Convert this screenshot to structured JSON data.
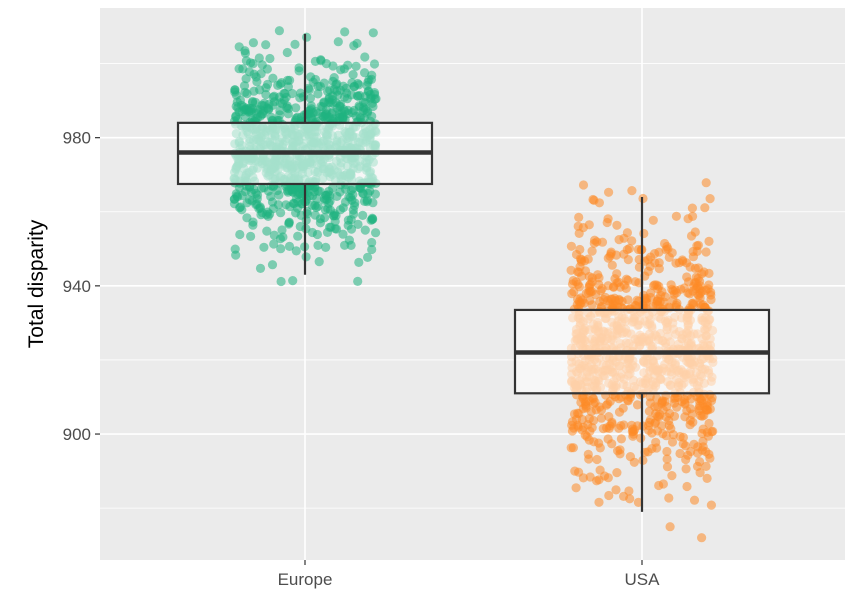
{
  "chart_data": {
    "type": "boxplot",
    "xlabel": "",
    "ylabel": "Total disparity",
    "categories": [
      "Europe",
      "USA"
    ],
    "ylim": [
      866,
      1015
    ],
    "y_ticks": [
      900,
      940,
      980
    ],
    "grid": true,
    "background": "#ebebeb",
    "boxes": [
      {
        "category": "Europe",
        "whisker_low": 943,
        "q1": 967.5,
        "median": 976,
        "q3": 984,
        "whisker_high": 1008,
        "outliers": [],
        "points_color": "#1fb37f",
        "points_range": [
          936,
          1012
        ]
      },
      {
        "category": "USA",
        "whisker_low": 879,
        "q1": 911,
        "median": 922,
        "q3": 933.5,
        "whisker_high": 964,
        "outliers": [],
        "points_color": "#fd8b27",
        "points_range": [
          870,
          973
        ]
      }
    ]
  }
}
